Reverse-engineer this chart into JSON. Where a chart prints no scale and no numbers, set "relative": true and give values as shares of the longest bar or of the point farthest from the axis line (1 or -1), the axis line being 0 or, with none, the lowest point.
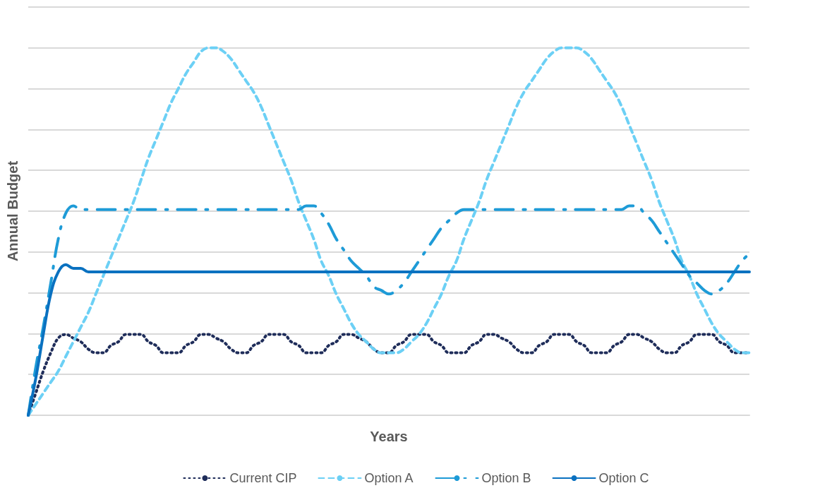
{
  "chart_data": {
    "type": "line",
    "relative": true,
    "xlabel": "Years",
    "ylabel": "Annual Budget",
    "grid": "y",
    "legend": "bottom",
    "marker": "none",
    "categories": [
      null,
      null,
      null,
      null,
      null,
      null,
      null,
      null,
      null,
      null,
      null,
      null,
      null,
      null,
      null,
      null,
      null,
      null,
      null,
      null,
      null,
      null,
      null,
      null,
      null,
      null,
      null,
      null,
      null,
      null,
      null,
      null,
      null,
      null,
      null,
      null,
      null,
      null,
      null,
      null,
      null,
      null,
      null,
      null,
      null,
      null,
      null,
      null,
      null,
      null,
      null,
      null,
      null,
      null,
      null,
      null,
      null,
      null,
      null,
      null,
      null,
      null,
      null,
      null,
      null,
      null,
      null,
      null,
      null,
      null,
      null,
      null,
      null,
      null,
      null,
      null,
      null,
      null,
      null,
      null,
      null,
      null,
      null,
      null,
      null,
      null,
      null,
      null,
      null,
      null,
      null,
      null,
      null,
      null,
      null,
      null,
      null
    ],
    "series": [
      {
        "name": "Current CIP",
        "color": "#1f2d5a",
        "line_style": "dotted",
        "values": [
          0,
          0.06,
          0.12,
          0.17,
          0.21,
          0.22,
          0.21,
          0.2,
          0.18,
          0.17,
          0.17,
          0.19,
          0.2,
          0.22,
          0.22,
          0.22,
          0.2,
          0.19,
          0.17,
          0.17,
          0.17,
          0.19,
          0.2,
          0.22,
          0.22,
          0.21,
          0.2,
          0.18,
          0.17,
          0.17,
          0.19,
          0.2,
          0.22,
          0.22,
          0.22,
          0.2,
          0.19,
          0.17,
          0.17,
          0.17,
          0.19,
          0.2,
          0.22,
          0.22,
          0.21,
          0.2,
          0.18,
          0.17,
          0.17,
          0.19,
          0.2,
          0.22,
          0.22,
          0.22,
          0.2,
          0.19,
          0.17,
          0.17,
          0.17,
          0.19,
          0.2,
          0.22,
          0.22,
          0.21,
          0.2,
          0.18,
          0.17,
          0.17,
          0.19,
          0.2,
          0.22,
          0.22,
          0.22,
          0.2,
          0.19,
          0.17,
          0.17,
          0.17,
          0.19,
          0.2,
          0.22,
          0.22,
          0.21,
          0.2,
          0.18,
          0.17,
          0.17,
          0.19,
          0.2,
          0.22,
          0.22,
          0.22,
          0.2,
          0.19,
          0.17,
          0.17,
          0.17
        ]
      },
      {
        "name": "Option A",
        "color": "#6cd0f5",
        "line_style": "dashed",
        "values": [
          0,
          0.03,
          0.06,
          0.09,
          0.12,
          0.16,
          0.2,
          0.24,
          0.28,
          0.33,
          0.38,
          0.43,
          0.48,
          0.53,
          0.58,
          0.64,
          0.7,
          0.75,
          0.8,
          0.85,
          0.89,
          0.93,
          0.96,
          0.99,
          1,
          1,
          0.99,
          0.97,
          0.94,
          0.91,
          0.88,
          0.84,
          0.79,
          0.74,
          0.69,
          0.64,
          0.58,
          0.53,
          0.48,
          0.42,
          0.38,
          0.33,
          0.29,
          0.25,
          0.22,
          0.2,
          0.18,
          0.17,
          0.17,
          0.17,
          0.18,
          0.2,
          0.22,
          0.25,
          0.29,
          0.33,
          0.38,
          0.42,
          0.48,
          0.53,
          0.58,
          0.64,
          0.69,
          0.74,
          0.79,
          0.84,
          0.88,
          0.91,
          0.94,
          0.97,
          0.99,
          1,
          1,
          1,
          0.99,
          0.97,
          0.94,
          0.91,
          0.88,
          0.84,
          0.79,
          0.74,
          0.69,
          0.64,
          0.58,
          0.53,
          0.48,
          0.42,
          0.38,
          0.33,
          0.29,
          0.25,
          0.22,
          0.2,
          0.18,
          0.17,
          0.17
        ]
      },
      {
        "name": "Option B",
        "color": "#1e9bd7",
        "line_style": "dashdot",
        "values": [
          0,
          0.13,
          0.24,
          0.36,
          0.48,
          0.55,
          0.57,
          0.56,
          0.56,
          0.56,
          0.56,
          0.56,
          0.56,
          0.56,
          0.56,
          0.56,
          0.56,
          0.56,
          0.56,
          0.56,
          0.56,
          0.56,
          0.56,
          0.56,
          0.56,
          0.56,
          0.56,
          0.56,
          0.56,
          0.56,
          0.56,
          0.56,
          0.56,
          0.56,
          0.56,
          0.56,
          0.56,
          0.57,
          0.57,
          0.55,
          0.52,
          0.48,
          0.45,
          0.42,
          0.4,
          0.38,
          0.35,
          0.34,
          0.33,
          0.34,
          0.36,
          0.39,
          0.42,
          0.45,
          0.48,
          0.51,
          0.53,
          0.55,
          0.56,
          0.56,
          0.56,
          0.56,
          0.56,
          0.56,
          0.56,
          0.56,
          0.56,
          0.56,
          0.56,
          0.56,
          0.56,
          0.56,
          0.56,
          0.56,
          0.56,
          0.56,
          0.56,
          0.56,
          0.56,
          0.56,
          0.57,
          0.57,
          0.55,
          0.53,
          0.5,
          0.47,
          0.44,
          0.41,
          0.38,
          0.36,
          0.34,
          0.33,
          0.34,
          0.36,
          0.39,
          0.42,
          0.44
        ]
      },
      {
        "name": "Option C",
        "color": "#0a71c0",
        "line_style": "solid",
        "values": [
          0,
          0.1,
          0.22,
          0.33,
          0.39,
          0.41,
          0.4,
          0.4,
          0.39,
          0.39,
          0.39,
          0.39,
          0.39,
          0.39,
          0.39,
          0.39,
          0.39,
          0.39,
          0.39,
          0.39,
          0.39,
          0.39,
          0.39,
          0.39,
          0.39,
          0.39,
          0.39,
          0.39,
          0.39,
          0.39,
          0.39,
          0.39,
          0.39,
          0.39,
          0.39,
          0.39,
          0.39,
          0.39,
          0.39,
          0.39,
          0.39,
          0.39,
          0.39,
          0.39,
          0.39,
          0.39,
          0.39,
          0.39,
          0.39,
          0.39,
          0.39,
          0.39,
          0.39,
          0.39,
          0.39,
          0.39,
          0.39,
          0.39,
          0.39,
          0.39,
          0.39,
          0.39,
          0.39,
          0.39,
          0.39,
          0.39,
          0.39,
          0.39,
          0.39,
          0.39,
          0.39,
          0.39,
          0.39,
          0.39,
          0.39,
          0.39,
          0.39,
          0.39,
          0.39,
          0.39,
          0.39,
          0.39,
          0.39,
          0.39,
          0.39,
          0.39,
          0.39,
          0.39,
          0.39,
          0.39,
          0.39,
          0.39,
          0.39,
          0.39,
          0.39,
          0.39,
          0.39
        ]
      }
    ]
  }
}
